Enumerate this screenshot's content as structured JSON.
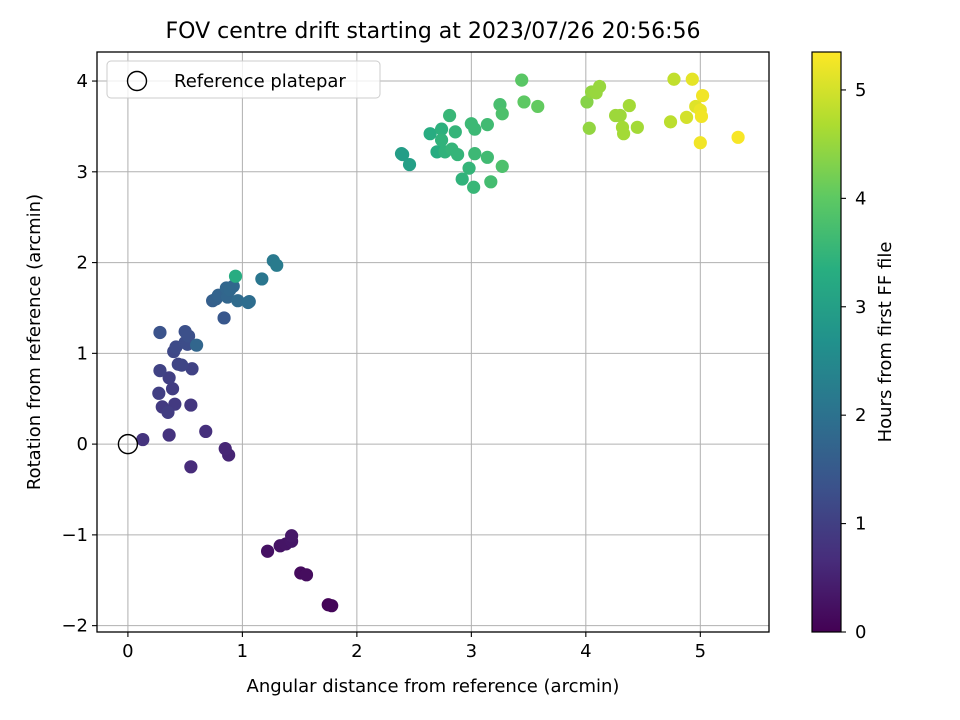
{
  "chart_data": {
    "type": "scatter",
    "title": "FOV centre drift starting at 2023/07/26 20:56:56",
    "xlabel": "Angular distance from reference (arcmin)",
    "ylabel": "Rotation from reference (arcmin)",
    "xlim": [
      -0.27,
      5.6
    ],
    "ylim": [
      -2.07,
      4.32
    ],
    "xticks": [
      0,
      1,
      2,
      3,
      4,
      5
    ],
    "yticks": [
      -2,
      -1,
      0,
      1,
      2,
      3,
      4
    ],
    "grid": true,
    "legend": {
      "position": "top-left",
      "entries": [
        "Reference platepar"
      ]
    },
    "reference_point": {
      "x": 0,
      "y": 0,
      "label": "Reference platepar"
    },
    "colorbar": {
      "label": "Hours from first FF file",
      "colormap": "viridis",
      "range": [
        0,
        5.35
      ],
      "ticks": [
        0,
        1,
        2,
        3,
        4,
        5
      ]
    },
    "series": [
      {
        "points": [
          {
            "x": 1.75,
            "y": -1.77,
            "c": 0.05
          },
          {
            "x": 1.78,
            "y": -1.78,
            "c": 0.08
          },
          {
            "x": 1.51,
            "y": -1.42,
            "c": 0.15
          },
          {
            "x": 1.56,
            "y": -1.44,
            "c": 0.18
          },
          {
            "x": 1.22,
            "y": -1.18,
            "c": 0.25
          },
          {
            "x": 1.33,
            "y": -1.12,
            "c": 0.28
          },
          {
            "x": 1.38,
            "y": -1.1,
            "c": 0.3
          },
          {
            "x": 1.43,
            "y": -1.07,
            "c": 0.32
          },
          {
            "x": 1.43,
            "y": -1.01,
            "c": 0.35
          },
          {
            "x": 0.88,
            "y": -0.12,
            "c": 0.55
          },
          {
            "x": 0.85,
            "y": -0.05,
            "c": 0.58
          },
          {
            "x": 0.55,
            "y": -0.25,
            "c": 0.65
          },
          {
            "x": 0.68,
            "y": 0.14,
            "c": 0.72
          },
          {
            "x": 0.36,
            "y": 0.1,
            "c": 0.78
          },
          {
            "x": 0.13,
            "y": 0.05,
            "c": 0.8
          },
          {
            "x": 0.55,
            "y": 0.43,
            "c": 0.85
          },
          {
            "x": 0.41,
            "y": 0.44,
            "c": 0.9
          },
          {
            "x": 0.3,
            "y": 0.41,
            "c": 0.9
          },
          {
            "x": 0.35,
            "y": 0.35,
            "c": 0.95
          },
          {
            "x": 0.39,
            "y": 0.61,
            "c": 0.95
          },
          {
            "x": 0.27,
            "y": 0.56,
            "c": 1.0
          },
          {
            "x": 0.36,
            "y": 0.73,
            "c": 1.0
          },
          {
            "x": 0.28,
            "y": 0.81,
            "c": 1.05
          },
          {
            "x": 0.56,
            "y": 0.83,
            "c": 1.05
          },
          {
            "x": 0.44,
            "y": 0.88,
            "c": 1.1
          },
          {
            "x": 0.47,
            "y": 0.87,
            "c": 1.1
          },
          {
            "x": 0.4,
            "y": 1.02,
            "c": 1.15
          },
          {
            "x": 0.42,
            "y": 1.07,
            "c": 1.2
          },
          {
            "x": 0.5,
            "y": 1.12,
            "c": 1.25
          },
          {
            "x": 0.52,
            "y": 1.1,
            "c": 1.25
          },
          {
            "x": 0.5,
            "y": 1.24,
            "c": 1.3
          },
          {
            "x": 0.53,
            "y": 1.19,
            "c": 1.3
          },
          {
            "x": 0.28,
            "y": 1.23,
            "c": 1.35
          },
          {
            "x": 0.84,
            "y": 1.39,
            "c": 1.45
          },
          {
            "x": 0.6,
            "y": 1.09,
            "c": 1.75
          },
          {
            "x": 0.74,
            "y": 1.58,
            "c": 1.6
          },
          {
            "x": 0.77,
            "y": 1.6,
            "c": 1.65
          },
          {
            "x": 0.79,
            "y": 1.64,
            "c": 1.7
          },
          {
            "x": 0.87,
            "y": 1.62,
            "c": 1.75
          },
          {
            "x": 0.86,
            "y": 1.72,
            "c": 1.75
          },
          {
            "x": 0.89,
            "y": 1.7,
            "c": 1.8
          },
          {
            "x": 0.92,
            "y": 1.74,
            "c": 1.8
          },
          {
            "x": 0.96,
            "y": 1.58,
            "c": 1.85
          },
          {
            "x": 1.05,
            "y": 1.56,
            "c": 1.9
          },
          {
            "x": 1.06,
            "y": 1.57,
            "c": 1.9
          },
          {
            "x": 1.17,
            "y": 1.82,
            "c": 2.1
          },
          {
            "x": 1.27,
            "y": 2.02,
            "c": 2.15
          },
          {
            "x": 1.3,
            "y": 1.97,
            "c": 2.2
          },
          {
            "x": 0.94,
            "y": 1.85,
            "c": 3.3
          },
          {
            "x": 2.39,
            "y": 3.2,
            "c": 2.95
          },
          {
            "x": 2.4,
            "y": 3.19,
            "c": 2.95
          },
          {
            "x": 2.46,
            "y": 3.08,
            "c": 3.0
          },
          {
            "x": 2.64,
            "y": 3.42,
            "c": 3.3
          },
          {
            "x": 2.7,
            "y": 3.22,
            "c": 3.3
          },
          {
            "x": 2.74,
            "y": 3.47,
            "c": 3.4
          },
          {
            "x": 2.74,
            "y": 3.35,
            "c": 3.45
          },
          {
            "x": 2.77,
            "y": 3.22,
            "c": 3.45
          },
          {
            "x": 2.81,
            "y": 3.62,
            "c": 3.55
          },
          {
            "x": 2.83,
            "y": 3.25,
            "c": 3.5
          },
          {
            "x": 2.86,
            "y": 3.44,
            "c": 3.5
          },
          {
            "x": 2.88,
            "y": 3.19,
            "c": 3.5
          },
          {
            "x": 2.92,
            "y": 2.92,
            "c": 3.45
          },
          {
            "x": 2.98,
            "y": 3.04,
            "c": 3.5
          },
          {
            "x": 3.0,
            "y": 3.53,
            "c": 3.6
          },
          {
            "x": 3.02,
            "y": 2.83,
            "c": 3.55
          },
          {
            "x": 3.03,
            "y": 3.47,
            "c": 3.6
          },
          {
            "x": 3.03,
            "y": 3.2,
            "c": 3.6
          },
          {
            "x": 3.14,
            "y": 3.52,
            "c": 3.65
          },
          {
            "x": 3.14,
            "y": 3.16,
            "c": 3.65
          },
          {
            "x": 3.17,
            "y": 2.89,
            "c": 3.7
          },
          {
            "x": 3.25,
            "y": 3.74,
            "c": 3.75
          },
          {
            "x": 3.27,
            "y": 3.64,
            "c": 3.8
          },
          {
            "x": 3.27,
            "y": 3.06,
            "c": 3.8
          },
          {
            "x": 3.44,
            "y": 4.01,
            "c": 3.95
          },
          {
            "x": 3.46,
            "y": 3.77,
            "c": 4.0
          },
          {
            "x": 3.58,
            "y": 3.72,
            "c": 4.05
          },
          {
            "x": 4.01,
            "y": 3.77,
            "c": 4.35
          },
          {
            "x": 4.03,
            "y": 3.48,
            "c": 4.45
          },
          {
            "x": 4.05,
            "y": 3.88,
            "c": 4.45
          },
          {
            "x": 4.09,
            "y": 3.87,
            "c": 4.5
          },
          {
            "x": 4.12,
            "y": 3.94,
            "c": 4.5
          },
          {
            "x": 4.26,
            "y": 3.62,
            "c": 4.55
          },
          {
            "x": 4.3,
            "y": 3.62,
            "c": 4.55
          },
          {
            "x": 4.32,
            "y": 3.49,
            "c": 4.6
          },
          {
            "x": 4.33,
            "y": 3.42,
            "c": 4.6
          },
          {
            "x": 4.38,
            "y": 3.73,
            "c": 4.6
          },
          {
            "x": 4.45,
            "y": 3.49,
            "c": 4.6
          },
          {
            "x": 4.74,
            "y": 3.55,
            "c": 4.8
          },
          {
            "x": 4.77,
            "y": 4.02,
            "c": 4.85
          },
          {
            "x": 4.88,
            "y": 3.6,
            "c": 5.0
          },
          {
            "x": 4.93,
            "y": 4.02,
            "c": 5.15
          },
          {
            "x": 4.96,
            "y": 3.72,
            "c": 5.1
          },
          {
            "x": 5.0,
            "y": 3.32,
            "c": 5.25
          },
          {
            "x": 5.0,
            "y": 3.68,
            "c": 5.2
          },
          {
            "x": 5.01,
            "y": 3.61,
            "c": 5.25
          },
          {
            "x": 5.02,
            "y": 3.84,
            "c": 5.25
          },
          {
            "x": 5.33,
            "y": 3.38,
            "c": 5.3
          }
        ]
      }
    ]
  }
}
